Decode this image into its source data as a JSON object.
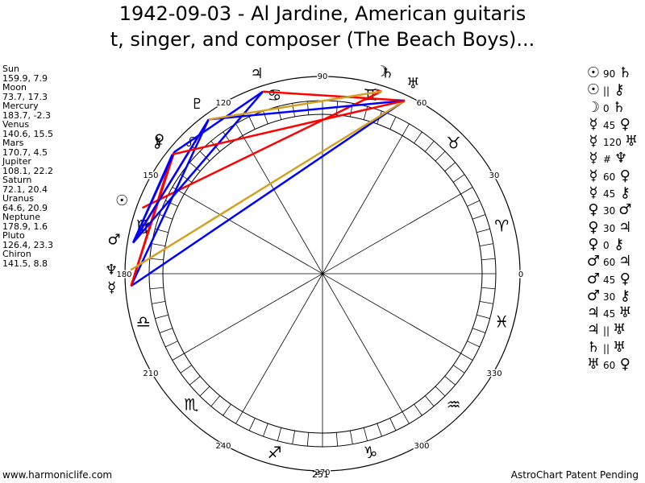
{
  "title": {
    "line1": "1942-09-03 - Al Jardine, American guitaris",
    "line2": "t, singer, and composer (The Beach Boys)..."
  },
  "planets": [
    {
      "name": "Sun",
      "values": "159.9, 7.9",
      "lon": 159.9,
      "glyph": "☉"
    },
    {
      "name": "Moon",
      "values": "73.7, 17.3",
      "lon": 73.7,
      "glyph": "☽"
    },
    {
      "name": "Mercury",
      "values": "183.7, -2.3",
      "lon": 183.7,
      "glyph": "☿"
    },
    {
      "name": "Venus",
      "values": "140.6, 15.5",
      "lon": 140.6,
      "glyph": "♀"
    },
    {
      "name": "Mars",
      "values": "170.7, 4.5",
      "lon": 170.7,
      "glyph": "♂"
    },
    {
      "name": "Jupiter",
      "values": "108.1, 22.2",
      "lon": 108.1,
      "glyph": "♃"
    },
    {
      "name": "Saturn",
      "values": "72.1, 20.4",
      "lon": 72.1,
      "glyph": "♄"
    },
    {
      "name": "Uranus",
      "values": "64.6, 20.9",
      "lon": 64.6,
      "glyph": "♅"
    },
    {
      "name": "Neptune",
      "values": "178.9, 1.6",
      "lon": 178.9,
      "glyph": "♆"
    },
    {
      "name": "Pluto",
      "values": "126.4, 23.3",
      "lon": 126.4,
      "glyph": "♇"
    },
    {
      "name": "Chiron",
      "values": "141.5, 8.8",
      "lon": 141.5,
      "glyph": "⚷"
    }
  ],
  "aspects": [
    {
      "p1": "☉",
      "num": "90",
      "p2": "♄"
    },
    {
      "p1": "☉",
      "num": "||",
      "p2": "⚷"
    },
    {
      "p1": "☽",
      "num": "0",
      "p2": "♄"
    },
    {
      "p1": "☿",
      "num": "45",
      "p2": "♀"
    },
    {
      "p1": "☿",
      "num": "120",
      "p2": "♅"
    },
    {
      "p1": "☿",
      "num": "#",
      "p2": "♆"
    },
    {
      "p1": "☿",
      "num": "60",
      "p2": "♀"
    },
    {
      "p1": "☿",
      "num": "45",
      "p2": "⚷"
    },
    {
      "p1": "♀",
      "num": "30",
      "p2": "♂"
    },
    {
      "p1": "♀",
      "num": "30",
      "p2": "♃"
    },
    {
      "p1": "♀",
      "num": "0",
      "p2": "⚷"
    },
    {
      "p1": "♂",
      "num": "60",
      "p2": "♃"
    },
    {
      "p1": "♂",
      "num": "45",
      "p2": "♀"
    },
    {
      "p1": "♂",
      "num": "30",
      "p2": "⚷"
    },
    {
      "p1": "♃",
      "num": "45",
      "p2": "♅"
    },
    {
      "p1": "♃",
      "num": "||",
      "p2": "♅"
    },
    {
      "p1": "♄",
      "num": "||",
      "p2": "♅"
    },
    {
      "p1": "♅",
      "num": "60",
      "p2": "♀"
    }
  ],
  "wheel": {
    "degree_labels": [
      "0",
      "30",
      "60",
      "90",
      "120",
      "150",
      "180",
      "210",
      "240",
      "270",
      "300",
      "330"
    ],
    "zodiac_signs": [
      "♈",
      "♉",
      "♊",
      "♋",
      "♌",
      "♍",
      "♎",
      "♏",
      "♐",
      "♑",
      "♒",
      "♓"
    ],
    "aspect_lines": [
      {
        "a": 159.9,
        "b": 72.1,
        "color": "#ff0000"
      },
      {
        "a": 73.7,
        "b": 72.1,
        "color": "#ff0000"
      },
      {
        "a": 183.7,
        "b": 140.6,
        "color": "#ff0000"
      },
      {
        "a": 183.7,
        "b": 64.6,
        "color": "#0000ff"
      },
      {
        "a": 183.7,
        "b": 126.4,
        "color": "#0000ff"
      },
      {
        "a": 183.7,
        "b": 141.5,
        "color": "#ff0000"
      },
      {
        "a": 140.6,
        "b": 170.7,
        "color": "#0000ff"
      },
      {
        "a": 140.6,
        "b": 108.1,
        "color": "#0000ff"
      },
      {
        "a": 170.7,
        "b": 108.1,
        "color": "#0000ff"
      },
      {
        "a": 170.7,
        "b": 126.4,
        "color": "#ff0000"
      },
      {
        "a": 170.7,
        "b": 141.5,
        "color": "#0000ff"
      },
      {
        "a": 108.1,
        "b": 64.6,
        "color": "#ff0000"
      },
      {
        "a": 64.6,
        "b": 126.4,
        "color": "#0000ff"
      },
      {
        "a": 178.9,
        "b": 64.6,
        "color": "#d4a020"
      },
      {
        "a": 126.4,
        "b": 170.7,
        "color": "#0000ff"
      },
      {
        "a": 141.5,
        "b": 64.6,
        "color": "#ff0000"
      },
      {
        "a": 126.4,
        "b": 72.1,
        "color": "#d4a020"
      }
    ]
  },
  "footer": {
    "left": "www.harmoniclife.com",
    "center": "251",
    "right": "AstroChart Patent Pending"
  }
}
